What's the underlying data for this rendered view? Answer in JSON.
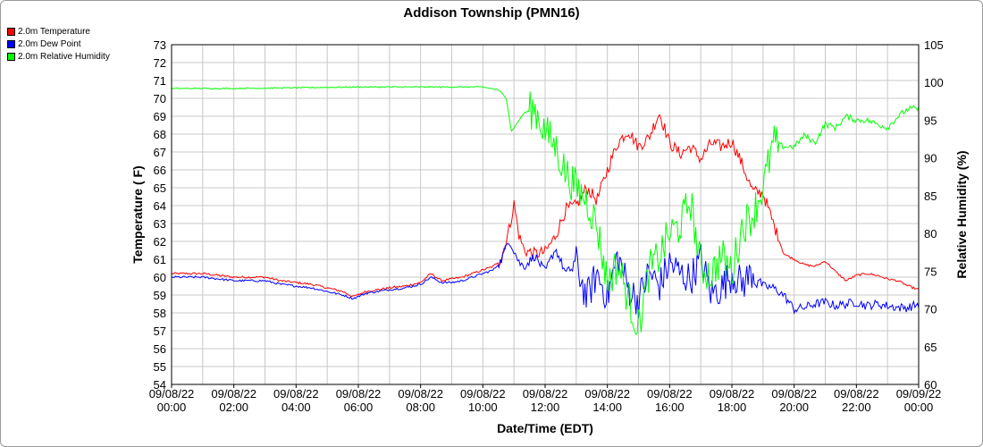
{
  "chart_data": {
    "type": "line",
    "title": "Addison Township (PMN16)",
    "xlabel": "Date/Time (EDT)",
    "ylabel": "Temperature ( F)",
    "y2label": "Relative Humidity (%)",
    "x_ticks": [
      {
        "date": "09/08/22",
        "time": "00:00"
      },
      {
        "date": "09/08/22",
        "time": "02:00"
      },
      {
        "date": "09/08/22",
        "time": "04:00"
      },
      {
        "date": "09/08/22",
        "time": "06:00"
      },
      {
        "date": "09/08/22",
        "time": "08:00"
      },
      {
        "date": "09/08/22",
        "time": "10:00"
      },
      {
        "date": "09/08/22",
        "time": "12:00"
      },
      {
        "date": "09/08/22",
        "time": "14:00"
      },
      {
        "date": "09/08/22",
        "time": "16:00"
      },
      {
        "date": "09/08/22",
        "time": "18:00"
      },
      {
        "date": "09/08/22",
        "time": "20:00"
      },
      {
        "date": "09/08/22",
        "time": "22:00"
      },
      {
        "date": "09/09/22",
        "time": "00:00"
      }
    ],
    "xlim": [
      "09/08/22 00:00",
      "09/09/22 00:00"
    ],
    "ylim": [
      54,
      73
    ],
    "y_ticks": [
      54,
      55,
      56,
      57,
      58,
      59,
      60,
      61,
      62,
      63,
      64,
      65,
      66,
      67,
      68,
      69,
      70,
      71,
      72,
      73
    ],
    "y2lim": [
      60,
      105
    ],
    "y2_ticks": [
      60,
      65,
      70,
      75,
      80,
      85,
      90,
      95,
      100,
      105
    ],
    "grid": true,
    "legend_placement": "top-left",
    "series": [
      {
        "name": "2.0m Temperature",
        "axis": "left",
        "color": "#ff0000",
        "points": [
          [
            "00:00",
            60.2
          ],
          [
            "00:30",
            60.2
          ],
          [
            "01:00",
            60.2
          ],
          [
            "01:30",
            60.1
          ],
          [
            "02:00",
            60.0
          ],
          [
            "02:30",
            60.0
          ],
          [
            "03:00",
            60.0
          ],
          [
            "03:30",
            59.8
          ],
          [
            "04:00",
            59.7
          ],
          [
            "04:30",
            59.6
          ],
          [
            "05:00",
            59.4
          ],
          [
            "05:30",
            59.2
          ],
          [
            "05:50",
            58.9
          ],
          [
            "06:15",
            59.2
          ],
          [
            "07:00",
            59.4
          ],
          [
            "07:30",
            59.5
          ],
          [
            "08:00",
            59.7
          ],
          [
            "08:20",
            60.2
          ],
          [
            "08:40",
            59.8
          ],
          [
            "09:00",
            59.9
          ],
          [
            "09:20",
            60.0
          ],
          [
            "09:40",
            60.2
          ],
          [
            "10:00",
            60.4
          ],
          [
            "10:20",
            60.6
          ],
          [
            "10:35",
            61.0
          ],
          [
            "10:50",
            62.6
          ],
          [
            "11:00",
            64.1
          ],
          [
            "11:10",
            62.3
          ],
          [
            "11:20",
            61.5
          ],
          [
            "11:40",
            61.3
          ],
          [
            "12:00",
            61.4
          ],
          [
            "12:20",
            62.3
          ],
          [
            "12:40",
            63.8
          ],
          [
            "13:00",
            64.0
          ],
          [
            "13:20",
            65.0
          ],
          [
            "13:40",
            64.3
          ],
          [
            "14:00",
            66.0
          ],
          [
            "14:20",
            67.5
          ],
          [
            "14:40",
            68.2
          ],
          [
            "15:00",
            67.3
          ],
          [
            "15:20",
            67.8
          ],
          [
            "15:40",
            69.2
          ],
          [
            "16:00",
            67.5
          ],
          [
            "16:20",
            66.9
          ],
          [
            "16:40",
            67.3
          ],
          [
            "17:00",
            66.6
          ],
          [
            "17:20",
            67.5
          ],
          [
            "17:40",
            67.3
          ],
          [
            "18:00",
            67.6
          ],
          [
            "18:20",
            66.3
          ],
          [
            "18:40",
            64.8
          ],
          [
            "19:00",
            64.7
          ],
          [
            "19:20",
            63.0
          ],
          [
            "19:40",
            61.3
          ],
          [
            "20:00",
            61.0
          ],
          [
            "20:20",
            60.7
          ],
          [
            "20:40",
            60.6
          ],
          [
            "21:00",
            60.9
          ],
          [
            "21:20",
            60.3
          ],
          [
            "21:40",
            59.8
          ],
          [
            "22:00",
            60.1
          ],
          [
            "22:20",
            60.2
          ],
          [
            "22:40",
            60.1
          ],
          [
            "23:00",
            59.9
          ],
          [
            "23:20",
            59.8
          ],
          [
            "23:40",
            59.5
          ],
          [
            "24:00",
            59.3
          ]
        ]
      },
      {
        "name": "2.0m Dew Point",
        "axis": "left",
        "color": "#0000ff",
        "points": [
          [
            "00:00",
            60.0
          ],
          [
            "00:30",
            60.0
          ],
          [
            "01:00",
            60.0
          ],
          [
            "01:30",
            59.9
          ],
          [
            "02:00",
            59.8
          ],
          [
            "02:30",
            59.8
          ],
          [
            "03:00",
            59.8
          ],
          [
            "03:30",
            59.6
          ],
          [
            "04:00",
            59.5
          ],
          [
            "04:30",
            59.4
          ],
          [
            "05:00",
            59.2
          ],
          [
            "05:30",
            59.0
          ],
          [
            "05:50",
            58.8
          ],
          [
            "06:15",
            59.1
          ],
          [
            "07:00",
            59.3
          ],
          [
            "07:30",
            59.4
          ],
          [
            "08:00",
            59.6
          ],
          [
            "08:20",
            60.0
          ],
          [
            "08:40",
            59.7
          ],
          [
            "09:00",
            59.7
          ],
          [
            "09:20",
            59.8
          ],
          [
            "09:40",
            60.0
          ],
          [
            "10:00",
            60.2
          ],
          [
            "10:20",
            60.4
          ],
          [
            "10:35",
            60.9
          ],
          [
            "10:50",
            62.1
          ],
          [
            "11:00",
            61.5
          ],
          [
            "11:10",
            60.8
          ],
          [
            "11:20",
            60.6
          ],
          [
            "11:40",
            61.2
          ],
          [
            "12:00",
            60.3
          ],
          [
            "12:20",
            61.6
          ],
          [
            "12:40",
            60.2
          ],
          [
            "13:00",
            60.8
          ],
          [
            "13:20",
            58.8
          ],
          [
            "13:40",
            60.2
          ],
          [
            "14:00",
            58.9
          ],
          [
            "14:20",
            61.2
          ],
          [
            "14:40",
            59.4
          ],
          [
            "15:00",
            58.7
          ],
          [
            "15:20",
            60.3
          ],
          [
            "15:40",
            59.5
          ],
          [
            "16:00",
            60.8
          ],
          [
            "16:20",
            60.2
          ],
          [
            "16:40",
            59.9
          ],
          [
            "17:00",
            61.0
          ],
          [
            "17:20",
            59.1
          ],
          [
            "17:40",
            59.4
          ],
          [
            "18:00",
            60.2
          ],
          [
            "18:20",
            59.6
          ],
          [
            "18:40",
            60.3
          ],
          [
            "19:00",
            59.5
          ],
          [
            "19:20",
            59.4
          ],
          [
            "19:40",
            59.0
          ],
          [
            "20:00",
            58.2
          ],
          [
            "20:20",
            58.3
          ],
          [
            "20:40",
            58.5
          ],
          [
            "21:00",
            58.6
          ],
          [
            "21:20",
            58.4
          ],
          [
            "21:40",
            58.5
          ],
          [
            "22:00",
            58.6
          ],
          [
            "22:20",
            58.4
          ],
          [
            "22:40",
            58.5
          ],
          [
            "23:00",
            58.4
          ],
          [
            "23:20",
            58.3
          ],
          [
            "23:40",
            58.3
          ],
          [
            "24:00",
            58.5
          ]
        ]
      },
      {
        "name": "2.0m Relative Humidity",
        "axis": "right",
        "color": "#00ff00",
        "points": [
          [
            "00:00",
            99.2
          ],
          [
            "02:00",
            99.2
          ],
          [
            "04:00",
            99.3
          ],
          [
            "06:00",
            99.4
          ],
          [
            "08:00",
            99.4
          ],
          [
            "10:00",
            99.4
          ],
          [
            "10:30",
            99.0
          ],
          [
            "10:45",
            98.0
          ],
          [
            "10:55",
            93.5
          ],
          [
            "11:05",
            94.5
          ],
          [
            "11:20",
            96.0
          ],
          [
            "11:40",
            96.5
          ],
          [
            "12:00",
            93.5
          ],
          [
            "12:20",
            91.5
          ],
          [
            "12:40",
            88.0
          ],
          [
            "13:00",
            86.0
          ],
          [
            "13:20",
            84.5
          ],
          [
            "13:40",
            81.0
          ],
          [
            "14:00",
            73.5
          ],
          [
            "14:20",
            76.0
          ],
          [
            "14:40",
            71.5
          ],
          [
            "15:00",
            67.5
          ],
          [
            "15:20",
            75.0
          ],
          [
            "15:40",
            77.0
          ],
          [
            "16:00",
            80.0
          ],
          [
            "16:20",
            81.0
          ],
          [
            "16:40",
            84.5
          ],
          [
            "17:00",
            75.5
          ],
          [
            "17:20",
            74.5
          ],
          [
            "17:40",
            77.0
          ],
          [
            "18:00",
            75.0
          ],
          [
            "18:20",
            81.0
          ],
          [
            "18:40",
            82.5
          ],
          [
            "19:00",
            86.0
          ],
          [
            "19:20",
            92.0
          ],
          [
            "19:40",
            91.5
          ],
          [
            "20:00",
            91.5
          ],
          [
            "20:20",
            93.0
          ],
          [
            "20:40",
            92.0
          ],
          [
            "21:00",
            94.5
          ],
          [
            "21:20",
            94.0
          ],
          [
            "21:40",
            95.5
          ],
          [
            "22:00",
            95.0
          ],
          [
            "22:20",
            95.0
          ],
          [
            "22:40",
            94.5
          ],
          [
            "23:00",
            94.0
          ],
          [
            "23:20",
            95.5
          ],
          [
            "23:40",
            96.5
          ],
          [
            "24:00",
            96.5
          ]
        ]
      }
    ]
  }
}
